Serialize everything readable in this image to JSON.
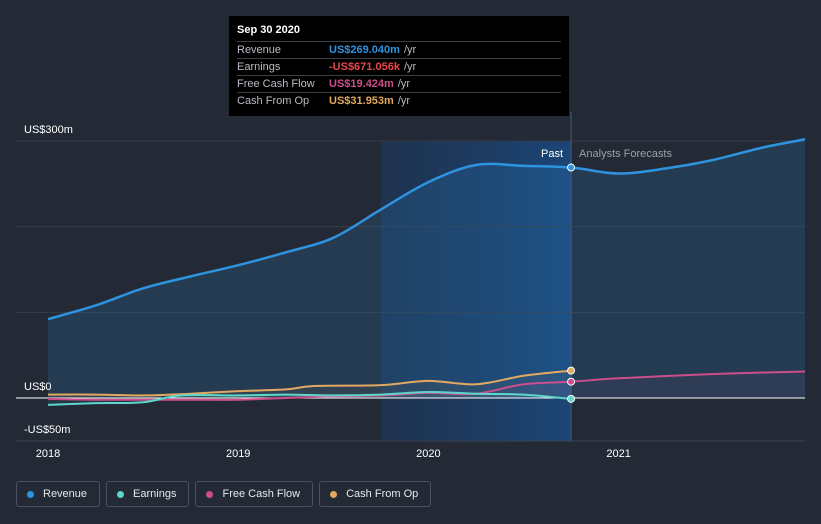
{
  "tooltip": {
    "date": "Sep 30 2020",
    "rows": [
      {
        "label": "Revenue",
        "value": "US$269.040m",
        "unit": "/yr",
        "color": "#2e93e0"
      },
      {
        "label": "Earnings",
        "value": "-US$671.056k",
        "unit": "/yr",
        "color": "#e8474b"
      },
      {
        "label": "Free Cash Flow",
        "value": "US$19.424m",
        "unit": "/yr",
        "color": "#cc4f8c"
      },
      {
        "label": "Cash From Op",
        "value": "US$31.953m",
        "unit": "/yr",
        "color": "#e3a862"
      }
    ]
  },
  "legend": [
    {
      "label": "Revenue",
      "color": "#2e93e0"
    },
    {
      "label": "Earnings",
      "color": "#5ed6cc"
    },
    {
      "label": "Free Cash Flow",
      "color": "#cc4f8c"
    },
    {
      "label": "Cash From Op",
      "color": "#e3a862"
    }
  ],
  "chart_data": {
    "type": "line",
    "title": "",
    "y_axis_labels": [
      "US$300m",
      "US$0",
      "-US$50m"
    ],
    "ylim": [
      -50,
      300
    ],
    "xlim": [
      2018.0,
      2021.98
    ],
    "x_ticks": [
      {
        "value": 2018,
        "label": "2018"
      },
      {
        "value": 2019,
        "label": "2019"
      },
      {
        "value": 2020,
        "label": "2020"
      },
      {
        "value": 2021,
        "label": "2021"
      }
    ],
    "past_label": "Past",
    "forecast_label": "Analysts Forecasts",
    "present_x": 2020.75,
    "highlight_start_x": 2019.75,
    "series": [
      {
        "name": "Revenue",
        "color": "#2e93e0",
        "fill": true,
        "points": [
          [
            2018.0,
            92
          ],
          [
            2018.25,
            108
          ],
          [
            2018.5,
            128
          ],
          [
            2018.75,
            142
          ],
          [
            2019.0,
            155
          ],
          [
            2019.25,
            170
          ],
          [
            2019.5,
            187
          ],
          [
            2019.75,
            220
          ],
          [
            2020.0,
            252
          ],
          [
            2020.25,
            272
          ],
          [
            2020.5,
            271
          ],
          [
            2020.75,
            269
          ],
          [
            2021.0,
            262
          ],
          [
            2021.25,
            268
          ],
          [
            2021.5,
            278
          ],
          [
            2021.75,
            292
          ],
          [
            2021.98,
            302
          ]
        ]
      },
      {
        "name": "Cash From Op",
        "color": "#e3a862",
        "fill": false,
        "points": [
          [
            2018.0,
            4
          ],
          [
            2018.25,
            4
          ],
          [
            2018.5,
            3
          ],
          [
            2018.75,
            5
          ],
          [
            2019.0,
            8
          ],
          [
            2019.25,
            10
          ],
          [
            2019.4,
            14
          ],
          [
            2019.75,
            15
          ],
          [
            2020.0,
            20
          ],
          [
            2020.25,
            16
          ],
          [
            2020.5,
            26
          ],
          [
            2020.75,
            32
          ]
        ]
      },
      {
        "name": "Free Cash Flow",
        "color": "#cc4f8c",
        "fill": false,
        "points": [
          [
            2018.0,
            -1
          ],
          [
            2018.25,
            -2
          ],
          [
            2018.5,
            -2
          ],
          [
            2018.75,
            -2
          ],
          [
            2019.0,
            -2
          ],
          [
            2019.25,
            0
          ],
          [
            2019.5,
            2
          ],
          [
            2019.75,
            3
          ],
          [
            2020.0,
            6
          ],
          [
            2020.25,
            5
          ],
          [
            2020.5,
            16
          ],
          [
            2020.75,
            19
          ],
          [
            2021.0,
            23
          ],
          [
            2021.5,
            28
          ],
          [
            2021.98,
            31
          ]
        ]
      },
      {
        "name": "Earnings",
        "color": "#5ed6cc",
        "fill": false,
        "points": [
          [
            2018.0,
            -8
          ],
          [
            2018.25,
            -6
          ],
          [
            2018.5,
            -5
          ],
          [
            2018.7,
            3
          ],
          [
            2019.0,
            3
          ],
          [
            2019.25,
            4
          ],
          [
            2019.5,
            3
          ],
          [
            2019.75,
            4
          ],
          [
            2020.0,
            7
          ],
          [
            2020.25,
            5
          ],
          [
            2020.5,
            4
          ],
          [
            2020.75,
            -1
          ]
        ]
      }
    ]
  }
}
